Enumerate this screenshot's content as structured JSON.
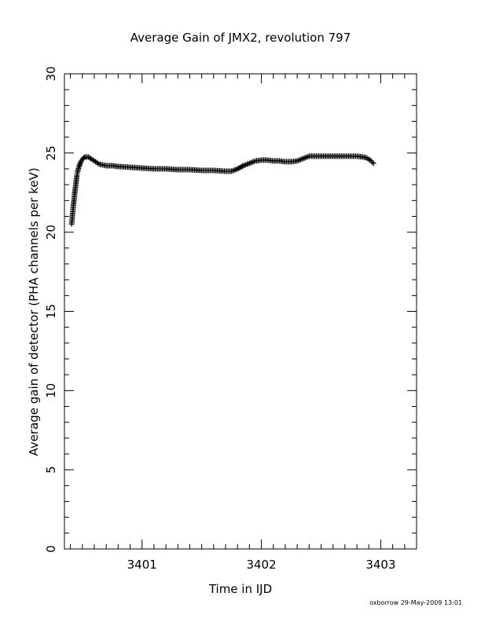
{
  "chart_data": {
    "type": "scatter",
    "title": "Average Gain of JMX2, revolution 797",
    "xlabel": "Time in IJD",
    "ylabel": "Average gain of detector (PHA channels per keV)",
    "xlim": [
      3400.35,
      3403.3
    ],
    "ylim": [
      0,
      30
    ],
    "xticks": [
      3401,
      3402,
      3403
    ],
    "yticks": [
      0,
      5,
      10,
      15,
      20,
      25,
      30
    ],
    "marker": "plus",
    "color": "#000000",
    "grid": false,
    "x": [
      3400.41,
      3400.415,
      3400.42,
      3400.425,
      3400.43,
      3400.435,
      3400.44,
      3400.445,
      3400.45,
      3400.455,
      3400.46,
      3400.47,
      3400.48,
      3400.49,
      3400.5,
      3400.52,
      3400.55,
      3400.58,
      3400.61,
      3400.64,
      3400.67,
      3400.7,
      3400.75,
      3400.8,
      3400.9,
      3401.0,
      3401.1,
      3401.2,
      3401.3,
      3401.4,
      3401.5,
      3401.6,
      3401.7,
      3401.75,
      3401.8,
      3401.85,
      3401.9,
      3401.95,
      3402.0,
      3402.05,
      3402.1,
      3402.15,
      3402.2,
      3402.25,
      3402.3,
      3402.35,
      3402.4,
      3402.45,
      3402.5,
      3402.6,
      3402.7,
      3402.8,
      3402.85,
      3402.88,
      3402.9,
      3402.92,
      3402.93,
      3402.94
    ],
    "y": [
      20.5,
      20.9,
      21.3,
      21.7,
      22.0,
      22.4,
      22.7,
      23.0,
      23.3,
      23.6,
      23.8,
      24.1,
      24.3,
      24.5,
      24.6,
      24.75,
      24.75,
      24.6,
      24.45,
      24.3,
      24.25,
      24.2,
      24.2,
      24.15,
      24.1,
      24.05,
      24.0,
      24.0,
      23.95,
      23.95,
      23.9,
      23.9,
      23.85,
      23.85,
      24.0,
      24.2,
      24.35,
      24.5,
      24.55,
      24.55,
      24.5,
      24.5,
      24.45,
      24.45,
      24.5,
      24.65,
      24.8,
      24.8,
      24.8,
      24.8,
      24.8,
      24.8,
      24.75,
      24.7,
      24.6,
      24.5,
      24.4,
      24.35
    ]
  },
  "footer": "oxborrow 29-May-2009 13:01"
}
